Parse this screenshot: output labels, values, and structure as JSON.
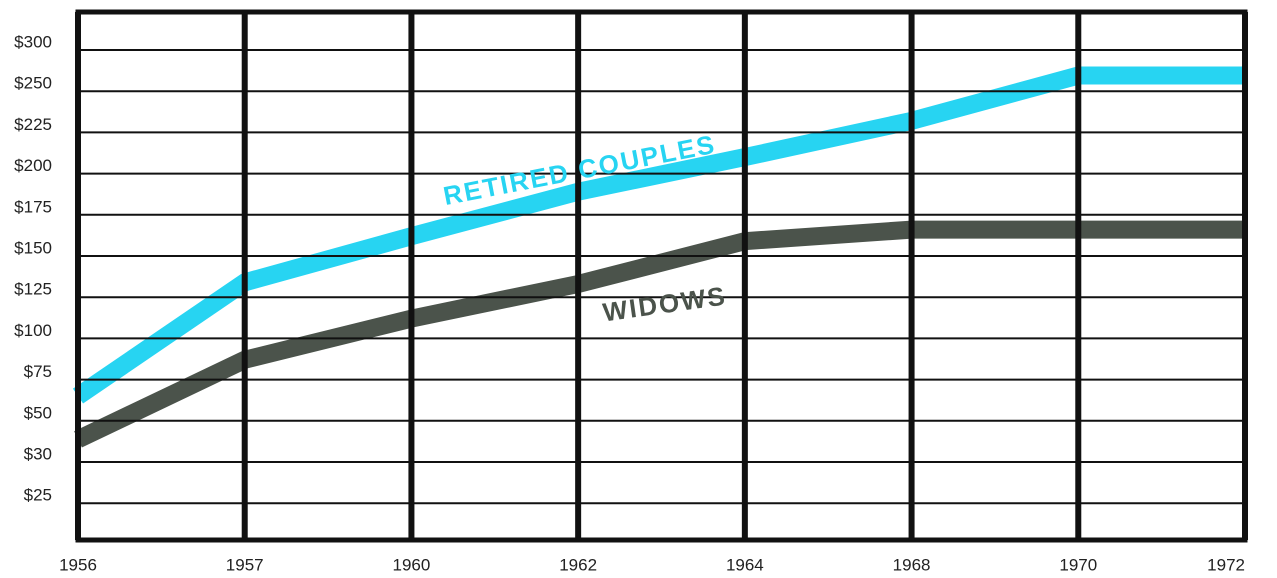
{
  "chart_data": {
    "type": "line",
    "categories": [
      "1956",
      "1957",
      "1960",
      "1962",
      "1964",
      "1968",
      "1970",
      "1972"
    ],
    "series": [
      {
        "name": "RETIRED COUPLES",
        "color": "#27d4f2",
        "values": [
          65,
          134,
          162,
          189,
          210,
          232,
          269,
          269
        ]
      },
      {
        "name": "WIDOWS",
        "color": "#4b534b",
        "values": [
          41,
          87,
          112,
          133,
          159,
          166,
          166,
          166
        ]
      }
    ],
    "ylim": [
      25,
      300
    ],
    "yticks": [
      {
        "value": 300,
        "label": "$300"
      },
      {
        "value": 250,
        "label": "$250"
      },
      {
        "value": 225,
        "label": "$225"
      },
      {
        "value": 200,
        "label": "$200"
      },
      {
        "value": 175,
        "label": "$175"
      },
      {
        "value": 150,
        "label": "$150"
      },
      {
        "value": 125,
        "label": "$125"
      },
      {
        "value": 100,
        "label": "$100"
      },
      {
        "value": 75,
        "label": "$75"
      },
      {
        "value": 50,
        "label": "$50"
      },
      {
        "value": 30,
        "label": "$30"
      },
      {
        "value": 25,
        "label": "$25"
      }
    ],
    "grid": true
  }
}
